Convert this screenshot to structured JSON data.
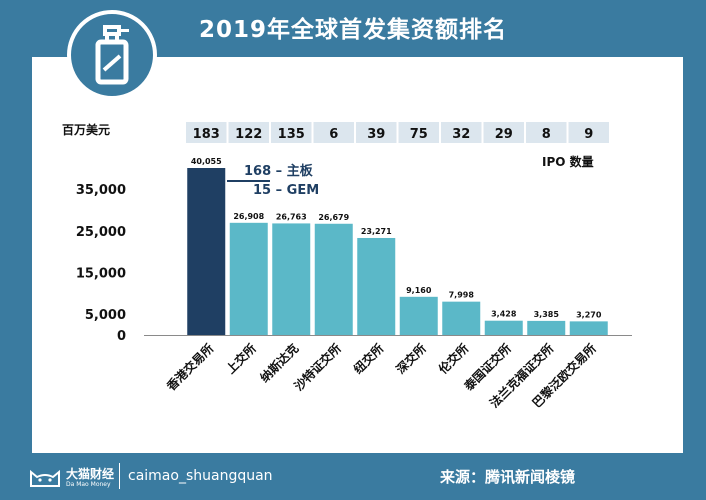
{
  "header": {
    "title": "2019年全球首发集资额排名"
  },
  "footer": {
    "logo_name": "大猫财经",
    "logo_sub": "Da Mao Money",
    "handle": "caimao_shuangquan",
    "source": "来源：腾讯新闻棱镜"
  },
  "colors": {
    "frame": "#3a7ba0",
    "highlight_bar": "#1f3f63",
    "bar": "#5bb8c8",
    "ipo_box": "#dce6ee"
  },
  "icon": {
    "name": "spray-bottle-icon"
  },
  "chart_data": {
    "type": "bar",
    "title": "2019年全球首发集资额排名",
    "ylabel": "百万美元",
    "ipo_label": "IPO 数量",
    "categories": [
      "香港交易所",
      "上交所",
      "纳斯达克",
      "沙特证交所",
      "纽交所",
      "深交所",
      "伦交所",
      "泰国证交所",
      "法兰克福证交所",
      "巴黎泛欧交易所"
    ],
    "values": [
      40055,
      26908,
      26763,
      26679,
      23271,
      9160,
      7998,
      3428,
      3385,
      3270
    ],
    "value_labels": [
      "40,055",
      "26,908",
      "26,763",
      "26,679",
      "23,271",
      "9,160",
      "7,998",
      "3,428",
      "3,385",
      "3,270"
    ],
    "ipo_counts": [
      "183",
      "122",
      "135",
      "6",
      "39",
      "75",
      "32",
      "29",
      "8",
      "9"
    ],
    "yticks": [
      0,
      5000,
      15000,
      25000,
      35000
    ],
    "ytick_labels": [
      "0",
      "5,000",
      "15,000",
      "25,000",
      "35,000"
    ],
    "ylim": [
      0,
      40055
    ],
    "highlight_index": 0,
    "annotation": {
      "line1": "168 – 主板",
      "line2": "15 – GEM"
    }
  }
}
